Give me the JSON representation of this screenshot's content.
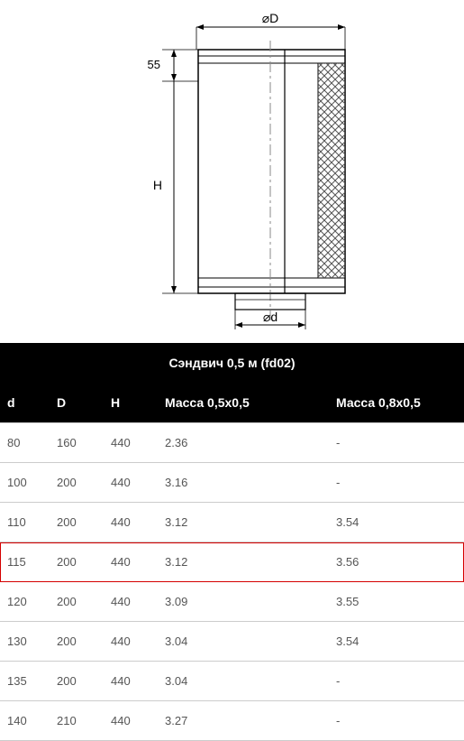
{
  "diagram": {
    "label_top": "⌀D",
    "label_bottom": "⌀d",
    "label_height": "H",
    "label_offset": "55",
    "stroke": "#000000",
    "thin_stroke": "#666666",
    "hatch": "#555555",
    "centerline": "#888888"
  },
  "table": {
    "title": "Сэндвич 0,5 м (fd02)",
    "columns": [
      "d",
      "D",
      "H",
      "Масса 0,5х0,5",
      "Масса 0,8х0,5"
    ],
    "highlight_row_index": 3,
    "rows": [
      [
        "80",
        "160",
        "440",
        "2.36",
        "-"
      ],
      [
        "100",
        "200",
        "440",
        "3.16",
        "-"
      ],
      [
        "110",
        "200",
        "440",
        "3.12",
        "3.54"
      ],
      [
        "115",
        "200",
        "440",
        "3.12",
        "3.56"
      ],
      [
        "120",
        "200",
        "440",
        "3.09",
        "3.55"
      ],
      [
        "130",
        "200",
        "440",
        "3.04",
        "3.54"
      ],
      [
        "135",
        "200",
        "440",
        "3.04",
        "-"
      ],
      [
        "140",
        "210",
        "440",
        "3.27",
        "-"
      ]
    ]
  }
}
